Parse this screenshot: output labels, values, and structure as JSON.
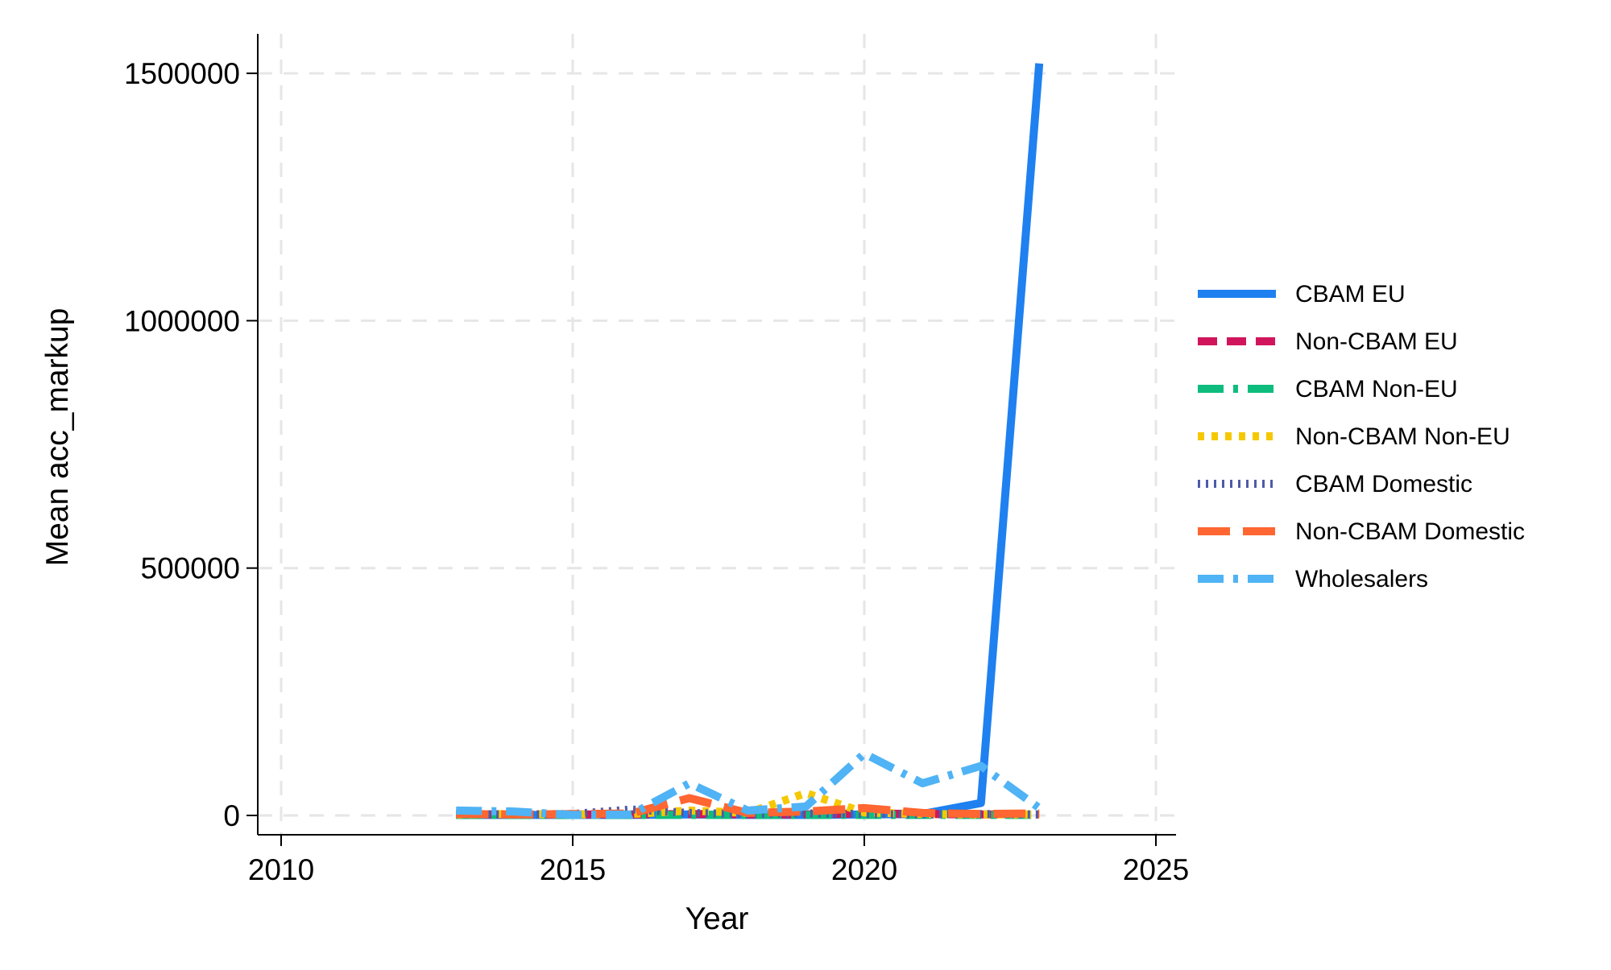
{
  "chart_data": {
    "type": "line",
    "title": "",
    "xlabel": "Year",
    "ylabel": "Mean acc_markup",
    "xlim": [
      2009.3,
      2025.8
    ],
    "ylim": [
      -40000,
      1580000
    ],
    "xticks": [
      2010,
      2015,
      2020,
      2025
    ],
    "xtick_labels": [
      "2010",
      "2015",
      "2020",
      "2025"
    ],
    "yticks": [
      0,
      500000,
      1000000,
      1500000
    ],
    "ytick_labels": [
      "0",
      "500000",
      "1000000",
      "1500000"
    ],
    "grid": true,
    "legend_position": "right",
    "x": [
      2013,
      2014,
      2015,
      2016,
      2017,
      2018,
      2019,
      2020,
      2021,
      2022,
      2023
    ],
    "series": [
      {
        "name": "CBAM EU",
        "color": "#1f80f0",
        "dash": "solid",
        "values": [
          1000,
          1000,
          1000,
          1000,
          2000,
          1000,
          1000,
          2000,
          3000,
          25000,
          1520000
        ]
      },
      {
        "name": "Non-CBAM EU",
        "color": "#d1155c",
        "dash": "dashed",
        "values": [
          2000,
          2000,
          2000,
          2000,
          3000,
          2000,
          2000,
          4000,
          3000,
          2000,
          2000
        ]
      },
      {
        "name": "CBAM Non-EU",
        "color": "#0ebd7e",
        "dash": "dashdot",
        "values": [
          1000,
          1000,
          1000,
          1000,
          1000,
          1000,
          1000,
          1000,
          1000,
          1000,
          1000
        ]
      },
      {
        "name": "Non-CBAM Non-EU",
        "color": "#f5c800",
        "dash": "dotted",
        "values": [
          2000,
          3000,
          2000,
          3000,
          10000,
          5000,
          45000,
          6000,
          3000,
          2000,
          2000
        ]
      },
      {
        "name": "CBAM Domestic",
        "color": "#4f5aa8",
        "dash": "shortdot",
        "values": [
          3000,
          2000,
          3000,
          12000,
          5000,
          3000,
          4000,
          3000,
          2000,
          3000,
          2000
        ]
      },
      {
        "name": "Non-CBAM Domestic",
        "color": "#ff6631",
        "dash": "longdash",
        "values": [
          3000,
          2000,
          3000,
          4000,
          35000,
          5000,
          8000,
          15000,
          5000,
          3000,
          4000
        ]
      },
      {
        "name": "Wholesalers",
        "color": "#4fb3f5",
        "dash": "dashdot",
        "values": [
          10000,
          8000,
          1000,
          2000,
          65000,
          10000,
          18000,
          125000,
          65000,
          100000,
          15000
        ]
      }
    ]
  }
}
